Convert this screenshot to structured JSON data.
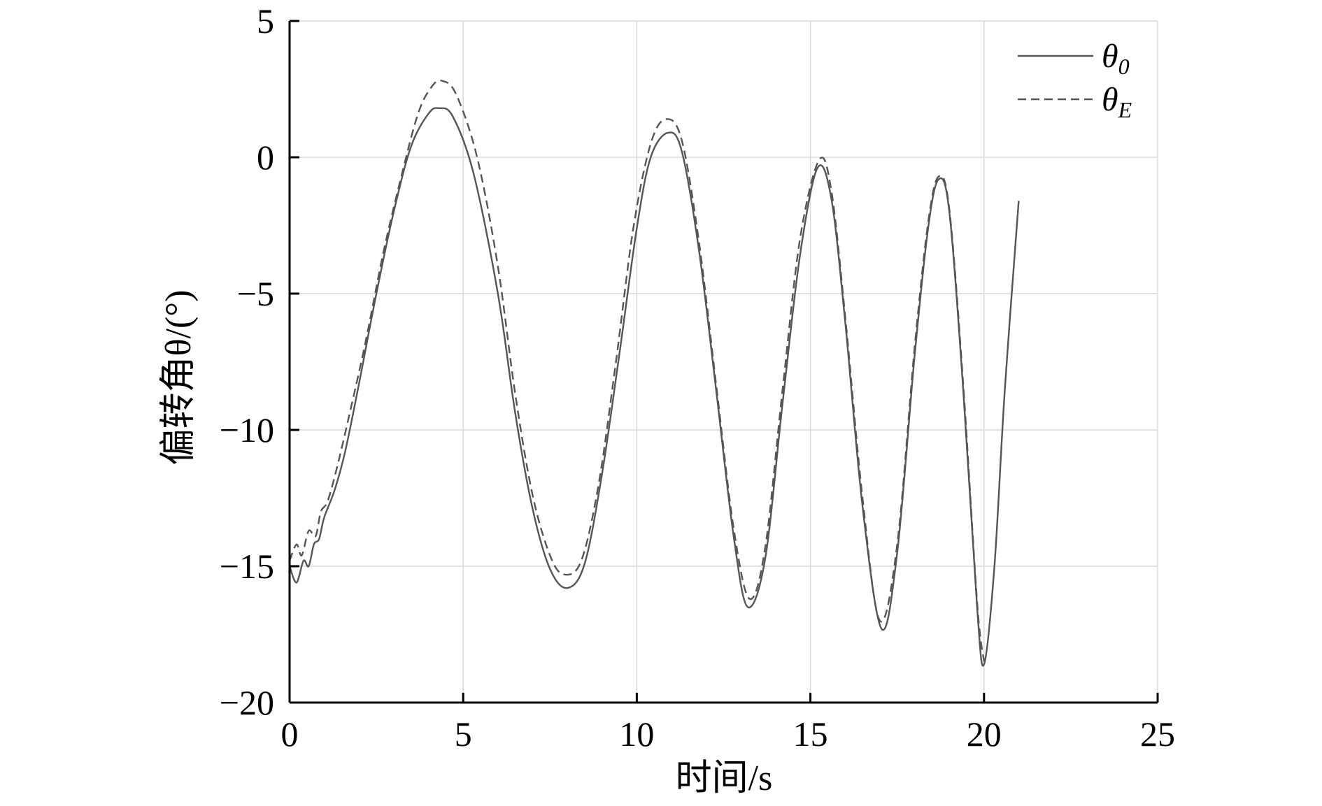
{
  "chart_data": {
    "type": "line",
    "title": "",
    "xlabel": "时间/s",
    "ylabel": "偏转角θ/(°)",
    "xlim": [
      0,
      25
    ],
    "ylim": [
      -20,
      5
    ],
    "xticks": [
      0,
      5,
      10,
      15,
      20,
      25
    ],
    "yticks": [
      5,
      0,
      -5,
      -10,
      -15,
      -20
    ],
    "grid": true,
    "legend_position": "top-right",
    "series": [
      {
        "name": "θ0",
        "legend_symbol": "θ",
        "legend_subscript": "0",
        "style": "solid",
        "color": "#555555",
        "points": [
          [
            0,
            -15.0
          ],
          [
            0.2,
            -15.6
          ],
          [
            0.4,
            -14.8
          ],
          [
            0.55,
            -15.0
          ],
          [
            0.7,
            -14.2
          ],
          [
            0.85,
            -14.0
          ],
          [
            1.0,
            -13.2
          ],
          [
            1.3,
            -12.2
          ],
          [
            1.6,
            -10.8
          ],
          [
            2.0,
            -8.3
          ],
          [
            2.5,
            -5.0
          ],
          [
            3.0,
            -2.0
          ],
          [
            3.5,
            0.4
          ],
          [
            4.0,
            1.6
          ],
          [
            4.3,
            1.8
          ],
          [
            4.7,
            1.5
          ],
          [
            5.3,
            -0.6
          ],
          [
            6.0,
            -5.0
          ],
          [
            6.5,
            -9.4
          ],
          [
            7.0,
            -12.9
          ],
          [
            7.5,
            -15.1
          ],
          [
            8.0,
            -15.8
          ],
          [
            8.5,
            -14.9
          ],
          [
            9.0,
            -11.6
          ],
          [
            9.5,
            -7.2
          ],
          [
            10.0,
            -2.6
          ],
          [
            10.4,
            0.0
          ],
          [
            10.9,
            0.9
          ],
          [
            11.3,
            0.2
          ],
          [
            11.8,
            -3.5
          ],
          [
            12.3,
            -8.7
          ],
          [
            12.8,
            -14.0
          ],
          [
            13.2,
            -16.5
          ],
          [
            13.7,
            -14.7
          ],
          [
            14.2,
            -9.0
          ],
          [
            14.7,
            -3.6
          ],
          [
            15.2,
            -0.4
          ],
          [
            15.6,
            -1.5
          ],
          [
            16.0,
            -6.0
          ],
          [
            16.5,
            -12.8
          ],
          [
            17.05,
            -17.3
          ],
          [
            17.5,
            -14.5
          ],
          [
            18.0,
            -7.3
          ],
          [
            18.4,
            -2.5
          ],
          [
            18.7,
            -0.8
          ],
          [
            19.0,
            -2.0
          ],
          [
            19.4,
            -8.5
          ],
          [
            19.8,
            -16.5
          ],
          [
            20.0,
            -18.6
          ],
          [
            20.3,
            -15.0
          ],
          [
            20.6,
            -8.5
          ],
          [
            21.0,
            -1.6
          ]
        ]
      },
      {
        "name": "θE",
        "legend_symbol": "θ",
        "legend_subscript": "E",
        "style": "dashed",
        "color": "#555555",
        "points": [
          [
            0,
            -14.8
          ],
          [
            0.2,
            -14.2
          ],
          [
            0.35,
            -14.6
          ],
          [
            0.55,
            -13.7
          ],
          [
            0.75,
            -13.9
          ],
          [
            0.9,
            -13.0
          ],
          [
            1.1,
            -12.6
          ],
          [
            1.4,
            -11.2
          ],
          [
            1.8,
            -9.0
          ],
          [
            2.2,
            -6.7
          ],
          [
            2.7,
            -3.5
          ],
          [
            3.2,
            -0.8
          ],
          [
            3.7,
            1.6
          ],
          [
            4.1,
            2.6
          ],
          [
            4.4,
            2.8
          ],
          [
            4.8,
            2.3
          ],
          [
            5.4,
            0.0
          ],
          [
            6.0,
            -4.0
          ],
          [
            6.5,
            -8.7
          ],
          [
            7.0,
            -12.4
          ],
          [
            7.5,
            -14.6
          ],
          [
            7.9,
            -15.3
          ],
          [
            8.4,
            -14.8
          ],
          [
            8.9,
            -12.0
          ],
          [
            9.4,
            -7.5
          ],
          [
            9.9,
            -2.6
          ],
          [
            10.4,
            0.5
          ],
          [
            10.85,
            1.4
          ],
          [
            11.3,
            0.6
          ],
          [
            11.8,
            -3.2
          ],
          [
            12.3,
            -8.5
          ],
          [
            12.8,
            -13.7
          ],
          [
            13.25,
            -16.2
          ],
          [
            13.7,
            -14.3
          ],
          [
            14.2,
            -8.5
          ],
          [
            14.7,
            -3.0
          ],
          [
            15.25,
            -0.1
          ],
          [
            15.6,
            -1.2
          ],
          [
            16.0,
            -5.8
          ],
          [
            16.5,
            -12.5
          ],
          [
            17.0,
            -17.0
          ],
          [
            17.5,
            -14.2
          ],
          [
            18.0,
            -7.0
          ],
          [
            18.4,
            -2.3
          ],
          [
            18.7,
            -0.7
          ],
          [
            19.0,
            -1.9
          ],
          [
            19.4,
            -8.3
          ],
          [
            19.8,
            -16.3
          ],
          [
            20.0,
            -18.5
          ]
        ]
      }
    ]
  }
}
